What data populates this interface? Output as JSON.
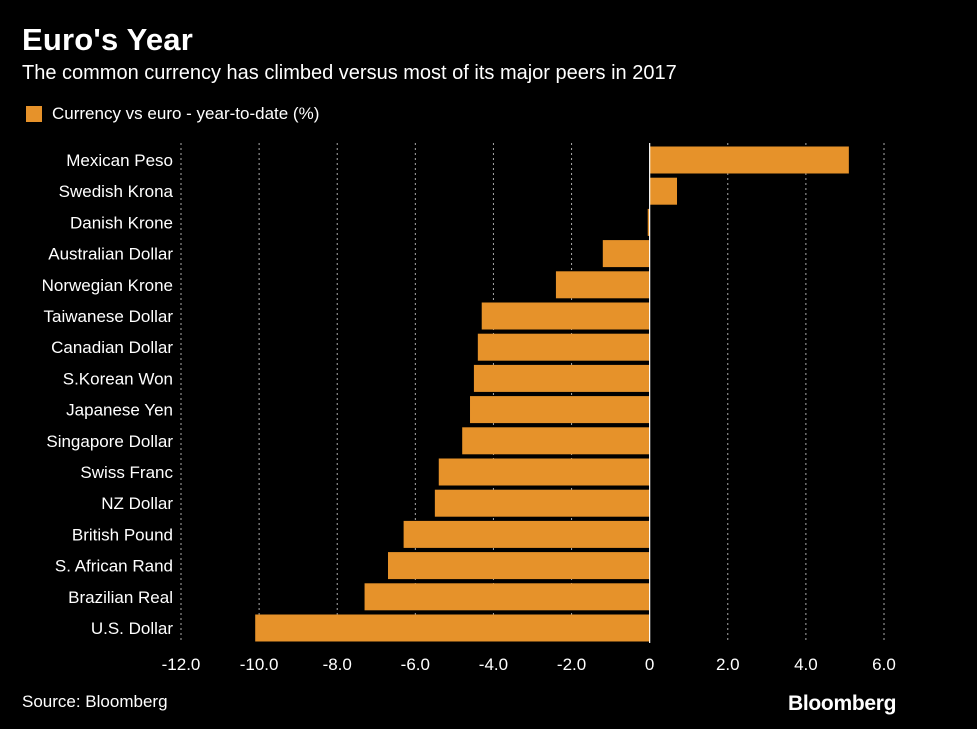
{
  "title": "Euro's Year",
  "subtitle": "The common currency has climbed versus most of its major peers in 2017",
  "source": "Source: Bloomberg",
  "brand": "Bloomberg",
  "colors": {
    "bar": "#e6922a",
    "background": "#000000",
    "text": "#ffffff",
    "grid": "#aaaaaa"
  },
  "chart_data": {
    "type": "bar",
    "orientation": "horizontal",
    "title": "Euro's Year",
    "subtitle": "The common currency has climbed versus most of its major peers in 2017",
    "legend": {
      "label": "Currency vs euro - year-to-date (%)",
      "placement": "top-left"
    },
    "categories": [
      "Mexican Peso",
      "Swedish Krona",
      "Danish Krone",
      "Australian Dollar",
      "Norwegian Krone",
      "Taiwanese Dollar",
      "Canadian Dollar",
      "S.Korean Won",
      "Japanese Yen",
      "Singapore Dollar",
      "Swiss Franc",
      "NZ Dollar",
      "British Pound",
      "S. African Rand",
      "Brazilian Real",
      "U.S. Dollar"
    ],
    "values": [
      5.1,
      0.7,
      -0.05,
      -1.2,
      -2.4,
      -4.3,
      -4.4,
      -4.5,
      -4.6,
      -4.8,
      -5.4,
      -5.5,
      -6.3,
      -6.7,
      -7.3,
      -10.1
    ],
    "xlim": [
      -12.0,
      6.0
    ],
    "ticks": [
      -12.0,
      -10.0,
      -8.0,
      -6.0,
      -4.0,
      -2.0,
      0,
      2.0,
      4.0,
      6.0
    ],
    "tick_labels": [
      "-12.0",
      "-10.0",
      "-8.0",
      "-6.0",
      "-4.0",
      "-2.0",
      "0",
      "2.0",
      "4.0",
      "6.0"
    ],
    "grid": true,
    "xlabel": "",
    "ylabel": ""
  }
}
